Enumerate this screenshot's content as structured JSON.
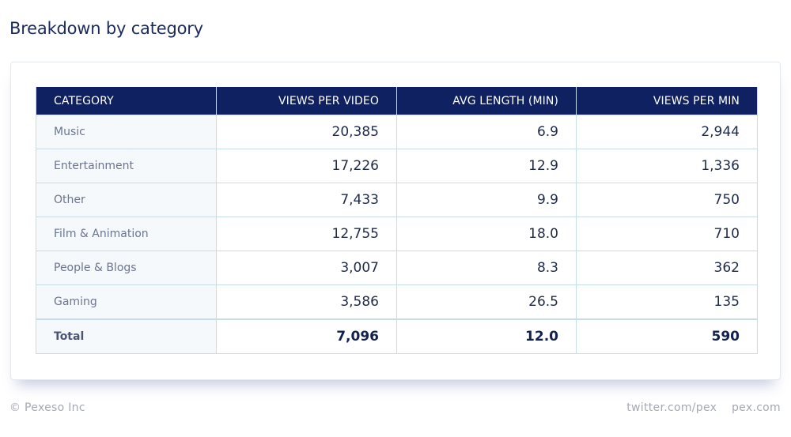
{
  "title": "Breakdown by category",
  "table": {
    "headers": [
      "CATEGORY",
      "VIEWS PER VIDEO",
      "AVG LENGTH (MIN)",
      "VIEWS PER MIN"
    ],
    "rows": [
      {
        "category": "Music",
        "views_per_video": "20,385",
        "avg_length": "6.9",
        "views_per_min": "2,944"
      },
      {
        "category": "Entertainment",
        "views_per_video": "17,226",
        "avg_length": "12.9",
        "views_per_min": "1,336"
      },
      {
        "category": "Other",
        "views_per_video": "7,433",
        "avg_length": "9.9",
        "views_per_min": "750"
      },
      {
        "category": "Film & Animation",
        "views_per_video": "12,755",
        "avg_length": "18.0",
        "views_per_min": "710"
      },
      {
        "category": "People & Blogs",
        "views_per_video": "3,007",
        "avg_length": "8.3",
        "views_per_min": "362"
      },
      {
        "category": "Gaming",
        "views_per_video": "3,586",
        "avg_length": "26.5",
        "views_per_min": "135"
      }
    ],
    "total": {
      "category": "Total",
      "views_per_video": "7,096",
      "avg_length": "12.0",
      "views_per_min": "590"
    }
  },
  "footer": {
    "copyright": "© Pexeso Inc",
    "links": [
      "twitter.com/pex",
      "pex.com"
    ]
  },
  "colors": {
    "header_bg": "#0f2160",
    "title": "#1b2a5a",
    "border": "#c6dce9"
  }
}
